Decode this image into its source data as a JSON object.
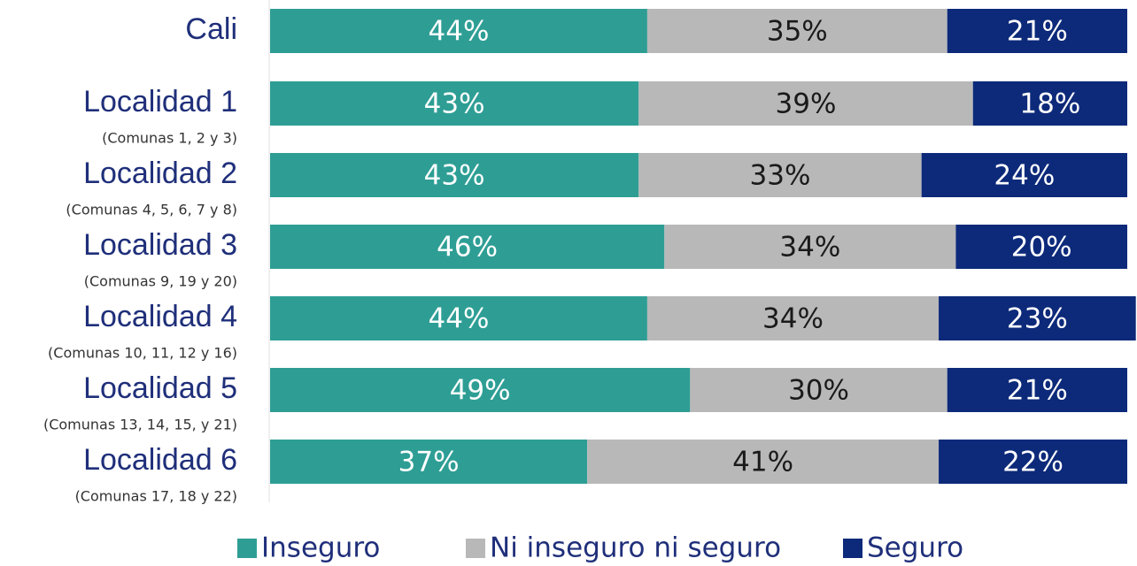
{
  "chart_data": {
    "type": "stacked-barh",
    "categories": [
      "Cali",
      "Localidad 1",
      "Localidad 2",
      "Localidad 3",
      "Localidad 4",
      "Localidad 5",
      "Localidad 6"
    ],
    "sublabels": [
      null,
      "(Comunas 1, 2 y 3)",
      "(Comunas 4, 5, 6, 7 y 8)",
      "(Comunas 9, 19 y 20)",
      "(Comunas 10, 11, 12 y 16)",
      "(Comunas 13, 14, 15, y 21)",
      "(Comunas 17, 18 y 22)"
    ],
    "xlim": [
      0,
      100
    ],
    "legend": "bottom",
    "series": [
      {
        "name": "Inseguro",
        "color": "#2e9e95",
        "label_color": "#ffffff",
        "values": [
          44,
          43,
          43,
          46,
          44,
          49,
          37
        ],
        "value_labels": [
          "44%",
          "43%",
          "43%",
          "46%",
          "44%",
          "49%",
          "37%"
        ]
      },
      {
        "name": "Ni inseguro ni seguro",
        "color": "#b8b8b8",
        "label_color": "#1a1a1a",
        "values": [
          35,
          39,
          33,
          34,
          34,
          30,
          41
        ],
        "value_labels": [
          "35%",
          "39%",
          "33%",
          "34%",
          "34%",
          "30%",
          "41%"
        ]
      },
      {
        "name": "Seguro",
        "color": "#0d2a7a",
        "label_color": "#ffffff",
        "values": [
          21,
          18,
          24,
          20,
          23,
          21,
          22
        ],
        "value_labels": [
          "21%",
          "18%",
          "24%",
          "20%",
          "23%",
          "21%",
          "22%"
        ]
      }
    ]
  }
}
